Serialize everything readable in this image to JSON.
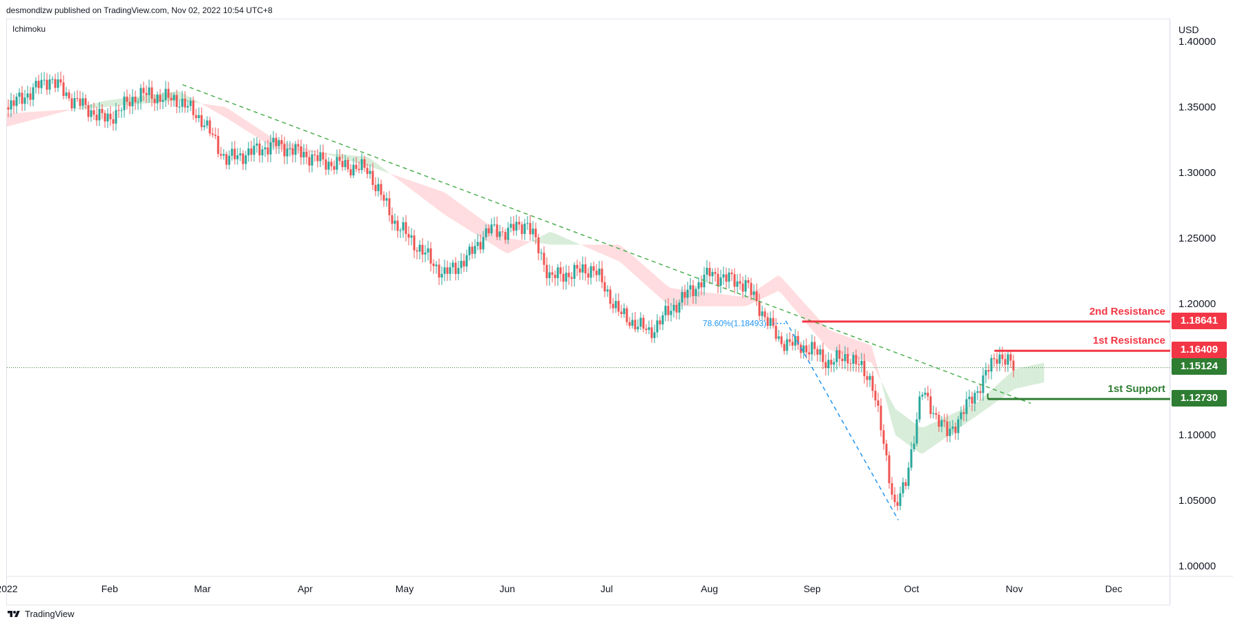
{
  "header": {
    "publisher_text": "desmondlzw published on TradingView.com, Nov 02, 2022 10:54 UTC+8"
  },
  "indicator": {
    "name": "Ichimoku"
  },
  "axis": {
    "currency": "USD"
  },
  "footer": {
    "brand": "TradingView",
    "logo_icon": "tradingview-logo-icon"
  },
  "colors": {
    "up": "#26a69a",
    "down": "#ef5350",
    "resistance": "#f23645",
    "support": "#2e7d32",
    "trendline": "#4caf50",
    "fib": "#2196f3",
    "cloud_bull": "#c8e6c9",
    "cloud_bear": "#ffcdd2"
  },
  "chart_data": {
    "type": "candlestick",
    "title": "",
    "xlabel": "",
    "ylabel": "",
    "x_ticks": [
      "2022",
      "Feb",
      "Mar",
      "Apr",
      "May",
      "Jun",
      "Jul",
      "Aug",
      "Sep",
      "Oct",
      "Nov",
      "Dec"
    ],
    "y_ticks": [
      "1.40000",
      "1.35000",
      "1.30000",
      "1.25000",
      "1.20000",
      "1.10000",
      "1.05000",
      "1.00000"
    ],
    "ylim": [
      0.995,
      1.405
    ],
    "grid": false,
    "series": [
      {
        "name": "",
        "type": "close",
        "dates": [
          "2022-01-01",
          "2022-01-14",
          "2022-01-20",
          "2022-01-31",
          "2022-02-10",
          "2022-02-22",
          "2022-03-01",
          "2022-03-08",
          "2022-03-15",
          "2022-03-23",
          "2022-04-07",
          "2022-04-20",
          "2022-04-28",
          "2022-05-13",
          "2022-05-20",
          "2022-05-26",
          "2022-06-01",
          "2022-06-07",
          "2022-06-14",
          "2022-06-27",
          "2022-07-05",
          "2022-07-14",
          "2022-07-20",
          "2022-08-01",
          "2022-08-12",
          "2022-08-22",
          "2022-09-01",
          "2022-09-06",
          "2022-09-12",
          "2022-09-19",
          "2022-09-26",
          "2022-09-29",
          "2022-10-04",
          "2022-10-12",
          "2022-10-21",
          "2022-10-27",
          "2022-11-01"
        ],
        "values": [
          1.349,
          1.372,
          1.357,
          1.34,
          1.36,
          1.355,
          1.34,
          1.31,
          1.315,
          1.322,
          1.308,
          1.302,
          1.262,
          1.222,
          1.235,
          1.256,
          1.255,
          1.262,
          1.22,
          1.227,
          1.192,
          1.178,
          1.195,
          1.223,
          1.215,
          1.172,
          1.165,
          1.155,
          1.16,
          1.142,
          1.045,
          1.06,
          1.133,
          1.1,
          1.135,
          1.162,
          1.151
        ]
      }
    ],
    "ichimoku_cloud": {
      "dates": [
        "2022-01-01",
        "2022-01-31",
        "2022-02-22",
        "2022-03-08",
        "2022-03-23",
        "2022-04-20",
        "2022-05-13",
        "2022-06-01",
        "2022-06-14",
        "2022-07-05",
        "2022-07-20",
        "2022-08-12",
        "2022-08-22",
        "2022-09-06",
        "2022-09-19",
        "2022-09-26",
        "2022-10-04",
        "2022-10-21",
        "2022-11-01",
        "2022-11-10"
      ],
      "span_a": [
        1.335,
        1.355,
        1.362,
        1.342,
        1.318,
        1.312,
        1.268,
        1.238,
        1.255,
        1.232,
        1.198,
        1.198,
        1.21,
        1.165,
        1.155,
        1.12,
        1.105,
        1.125,
        1.15,
        1.155
      ],
      "span_b": [
        1.345,
        1.35,
        1.355,
        1.35,
        1.325,
        1.305,
        1.285,
        1.25,
        1.245,
        1.245,
        1.212,
        1.205,
        1.222,
        1.18,
        1.168,
        1.1,
        1.085,
        1.115,
        1.135,
        1.14
      ]
    },
    "trendlines": [
      {
        "start": [
          "2022-02-23",
          1.367
        ],
        "end": [
          "2022-11-06",
          1.124
        ],
        "style": "dashed",
        "color": "#4caf50"
      },
      {
        "start": [
          "2022-08-24",
          1.187
        ],
        "end": [
          "2022-09-27",
          1.035
        ],
        "style": "dashed",
        "color": "#2196f3"
      }
    ],
    "fib_label": "78.60%(1.18493)",
    "fib_value": 1.18493,
    "levels": [
      {
        "label": "2nd Resistance",
        "value": 1.18641,
        "display": "1.18641",
        "kind": "resistance"
      },
      {
        "label": "1st Resistance",
        "value": 1.16409,
        "display": "1.16409",
        "kind": "resistance"
      },
      {
        "label": "",
        "value": 1.15124,
        "display": "1.15124",
        "kind": "last"
      },
      {
        "label": "1st Support",
        "value": 1.1273,
        "display": "1.12730",
        "kind": "support"
      }
    ]
  }
}
